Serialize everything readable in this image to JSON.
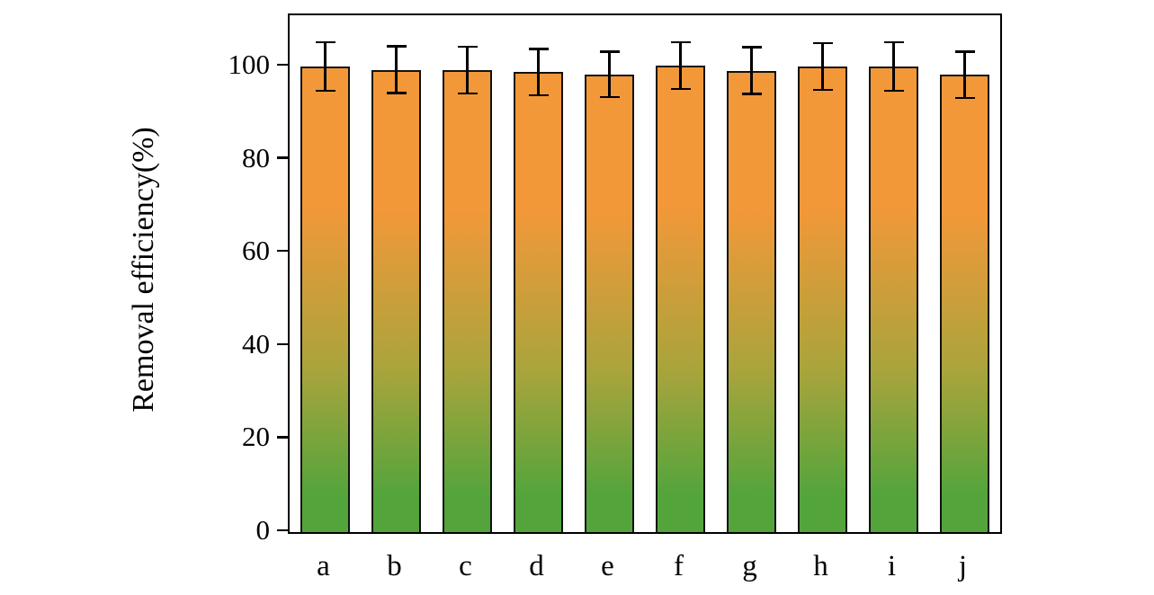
{
  "chart_data": {
    "type": "bar",
    "title": "",
    "xlabel": "",
    "ylabel": "Removal efficiency(%)",
    "categories": [
      "a",
      "b",
      "c",
      "d",
      "e",
      "f",
      "g",
      "h",
      "i",
      "j"
    ],
    "values": [
      100,
      99.3,
      99.2,
      98.8,
      98.3,
      100.2,
      99.1,
      100,
      100,
      98.2
    ],
    "errors": [
      5.2,
      5.0,
      5.0,
      5.0,
      4.9,
      5.0,
      5.0,
      5.0,
      5.2,
      5.0
    ],
    "yticks": [
      0,
      20,
      40,
      60,
      80,
      100
    ],
    "ylim": [
      0,
      111
    ],
    "grid": false,
    "legend": "none",
    "bar_gradient_top": "#F29839",
    "bar_gradient_mid": "#A9A43C",
    "bar_gradient_bottom": "#54A43C",
    "bar_outline_color": "#111111",
    "axis_color": "#000000"
  }
}
